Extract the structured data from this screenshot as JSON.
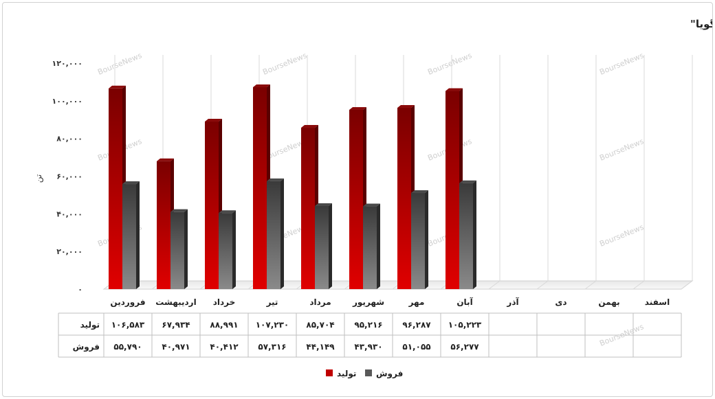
{
  "chart_data": {
    "type": "bar",
    "title": "روند مقدار تولید و فروش محصولات \"شگویا\"",
    "ylabel": "تن",
    "xlabel": "",
    "ylim": [
      0,
      120000
    ],
    "yticks": [
      0,
      20000,
      40000,
      60000,
      80000,
      100000,
      120000
    ],
    "ytick_labels": [
      "۰",
      "۲۰,۰۰۰",
      "۴۰,۰۰۰",
      "۶۰,۰۰۰",
      "۸۰,۰۰۰",
      "۱۰۰,۰۰۰",
      "۱۲۰,۰۰۰"
    ],
    "categories": [
      "فروردین",
      "اردیبهشت",
      "خرداد",
      "تیر",
      "مرداد",
      "شهریور",
      "مهر",
      "آبان",
      "آذر",
      "دی",
      "بهمن",
      "اسفند"
    ],
    "series": [
      {
        "name": "تولید",
        "color": "#c00000",
        "values": [
          106583,
          67934,
          88991,
          107230,
          85704,
          95216,
          96287,
          105223,
          null,
          null,
          null,
          null
        ],
        "labels": [
          "۱۰۶,۵۸۳",
          "۶۷,۹۳۴",
          "۸۸,۹۹۱",
          "۱۰۷,۲۳۰",
          "۸۵,۷۰۴",
          "۹۵,۲۱۶",
          "۹۶,۲۸۷",
          "۱۰۵,۲۲۳",
          "",
          "",
          "",
          ""
        ]
      },
      {
        "name": "فروش",
        "color": "#595959",
        "values": [
          55790,
          40971,
          40412,
          57316,
          44149,
          43930,
          51055,
          56277,
          null,
          null,
          null,
          null
        ],
        "labels": [
          "۵۵,۷۹۰",
          "۴۰,۹۷۱",
          "۴۰,۴۱۲",
          "۵۷,۳۱۶",
          "۴۴,۱۴۹",
          "۴۳,۹۳۰",
          "۵۱,۰۵۵",
          "۵۶,۲۷۷",
          "",
          "",
          "",
          ""
        ]
      }
    ],
    "grid": "vertical",
    "legend": "bottom-center",
    "data_table": true,
    "watermark": "BourseNews"
  }
}
